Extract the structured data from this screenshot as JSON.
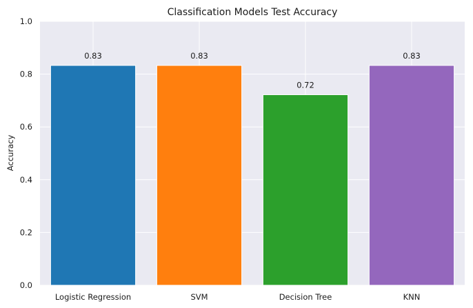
{
  "chart_data": {
    "type": "bar",
    "title": "Classification Models Test Accuracy",
    "xlabel": "",
    "ylabel": "Accuracy",
    "categories": [
      "Logistic Regression",
      "SVM",
      "Decision Tree",
      "KNN"
    ],
    "values": [
      0.833,
      0.833,
      0.722,
      0.833
    ],
    "value_labels": [
      "0.83",
      "0.83",
      "0.72",
      "0.83"
    ],
    "colors": [
      "#1f77b4",
      "#ff7f0e",
      "#2ca02c",
      "#9467bd"
    ],
    "ylim": [
      0,
      1.0
    ],
    "yticks": [
      0.0,
      0.2,
      0.4,
      0.6,
      0.8,
      1.0
    ],
    "ytick_labels": [
      "0.0",
      "0.2",
      "0.4",
      "0.6",
      "0.8",
      "1.0"
    ],
    "grid": true,
    "background_color": "#eaeaf2"
  }
}
